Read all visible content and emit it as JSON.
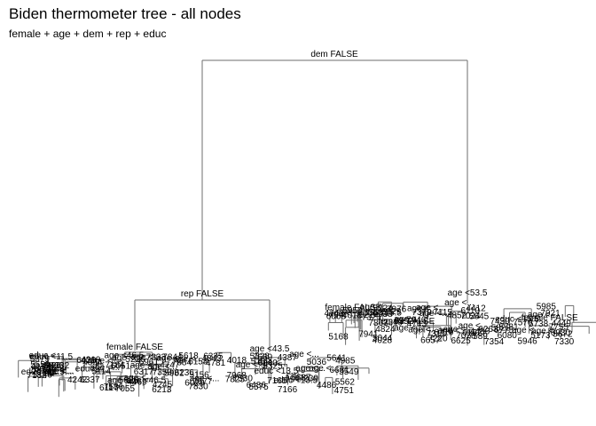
{
  "title": "Biden thermometer tree - all nodes",
  "subtitle": "female + age + dem + rep + educ",
  "tree": {
    "root_split": "dem FALSE",
    "left_split": "rep FALSE",
    "right_split": "age <53.5",
    "left_left_split": "female FALSE",
    "left_right_split": "age <43.5",
    "deep_labels_left_left": [
      "educ <...",
      "age <...",
      "age <...",
      "age <...",
      "educ <11.5",
      "age <...",
      "age <...",
      "age <..."
    ],
    "deep_labels_left_right": [
      "age <46.5",
      "age <...",
      "educ <13.5",
      "age <...",
      "age <...",
      "age <..."
    ],
    "deep_labels_right_left": [
      "educ <15.5",
      "age <...",
      "age <...",
      "age <...",
      "female FALSE",
      "age <...",
      "age <...",
      "age <..."
    ],
    "deep_labels_right_right": [
      "female FALSE",
      "age <...",
      "age <...",
      "age <..."
    ]
  }
}
